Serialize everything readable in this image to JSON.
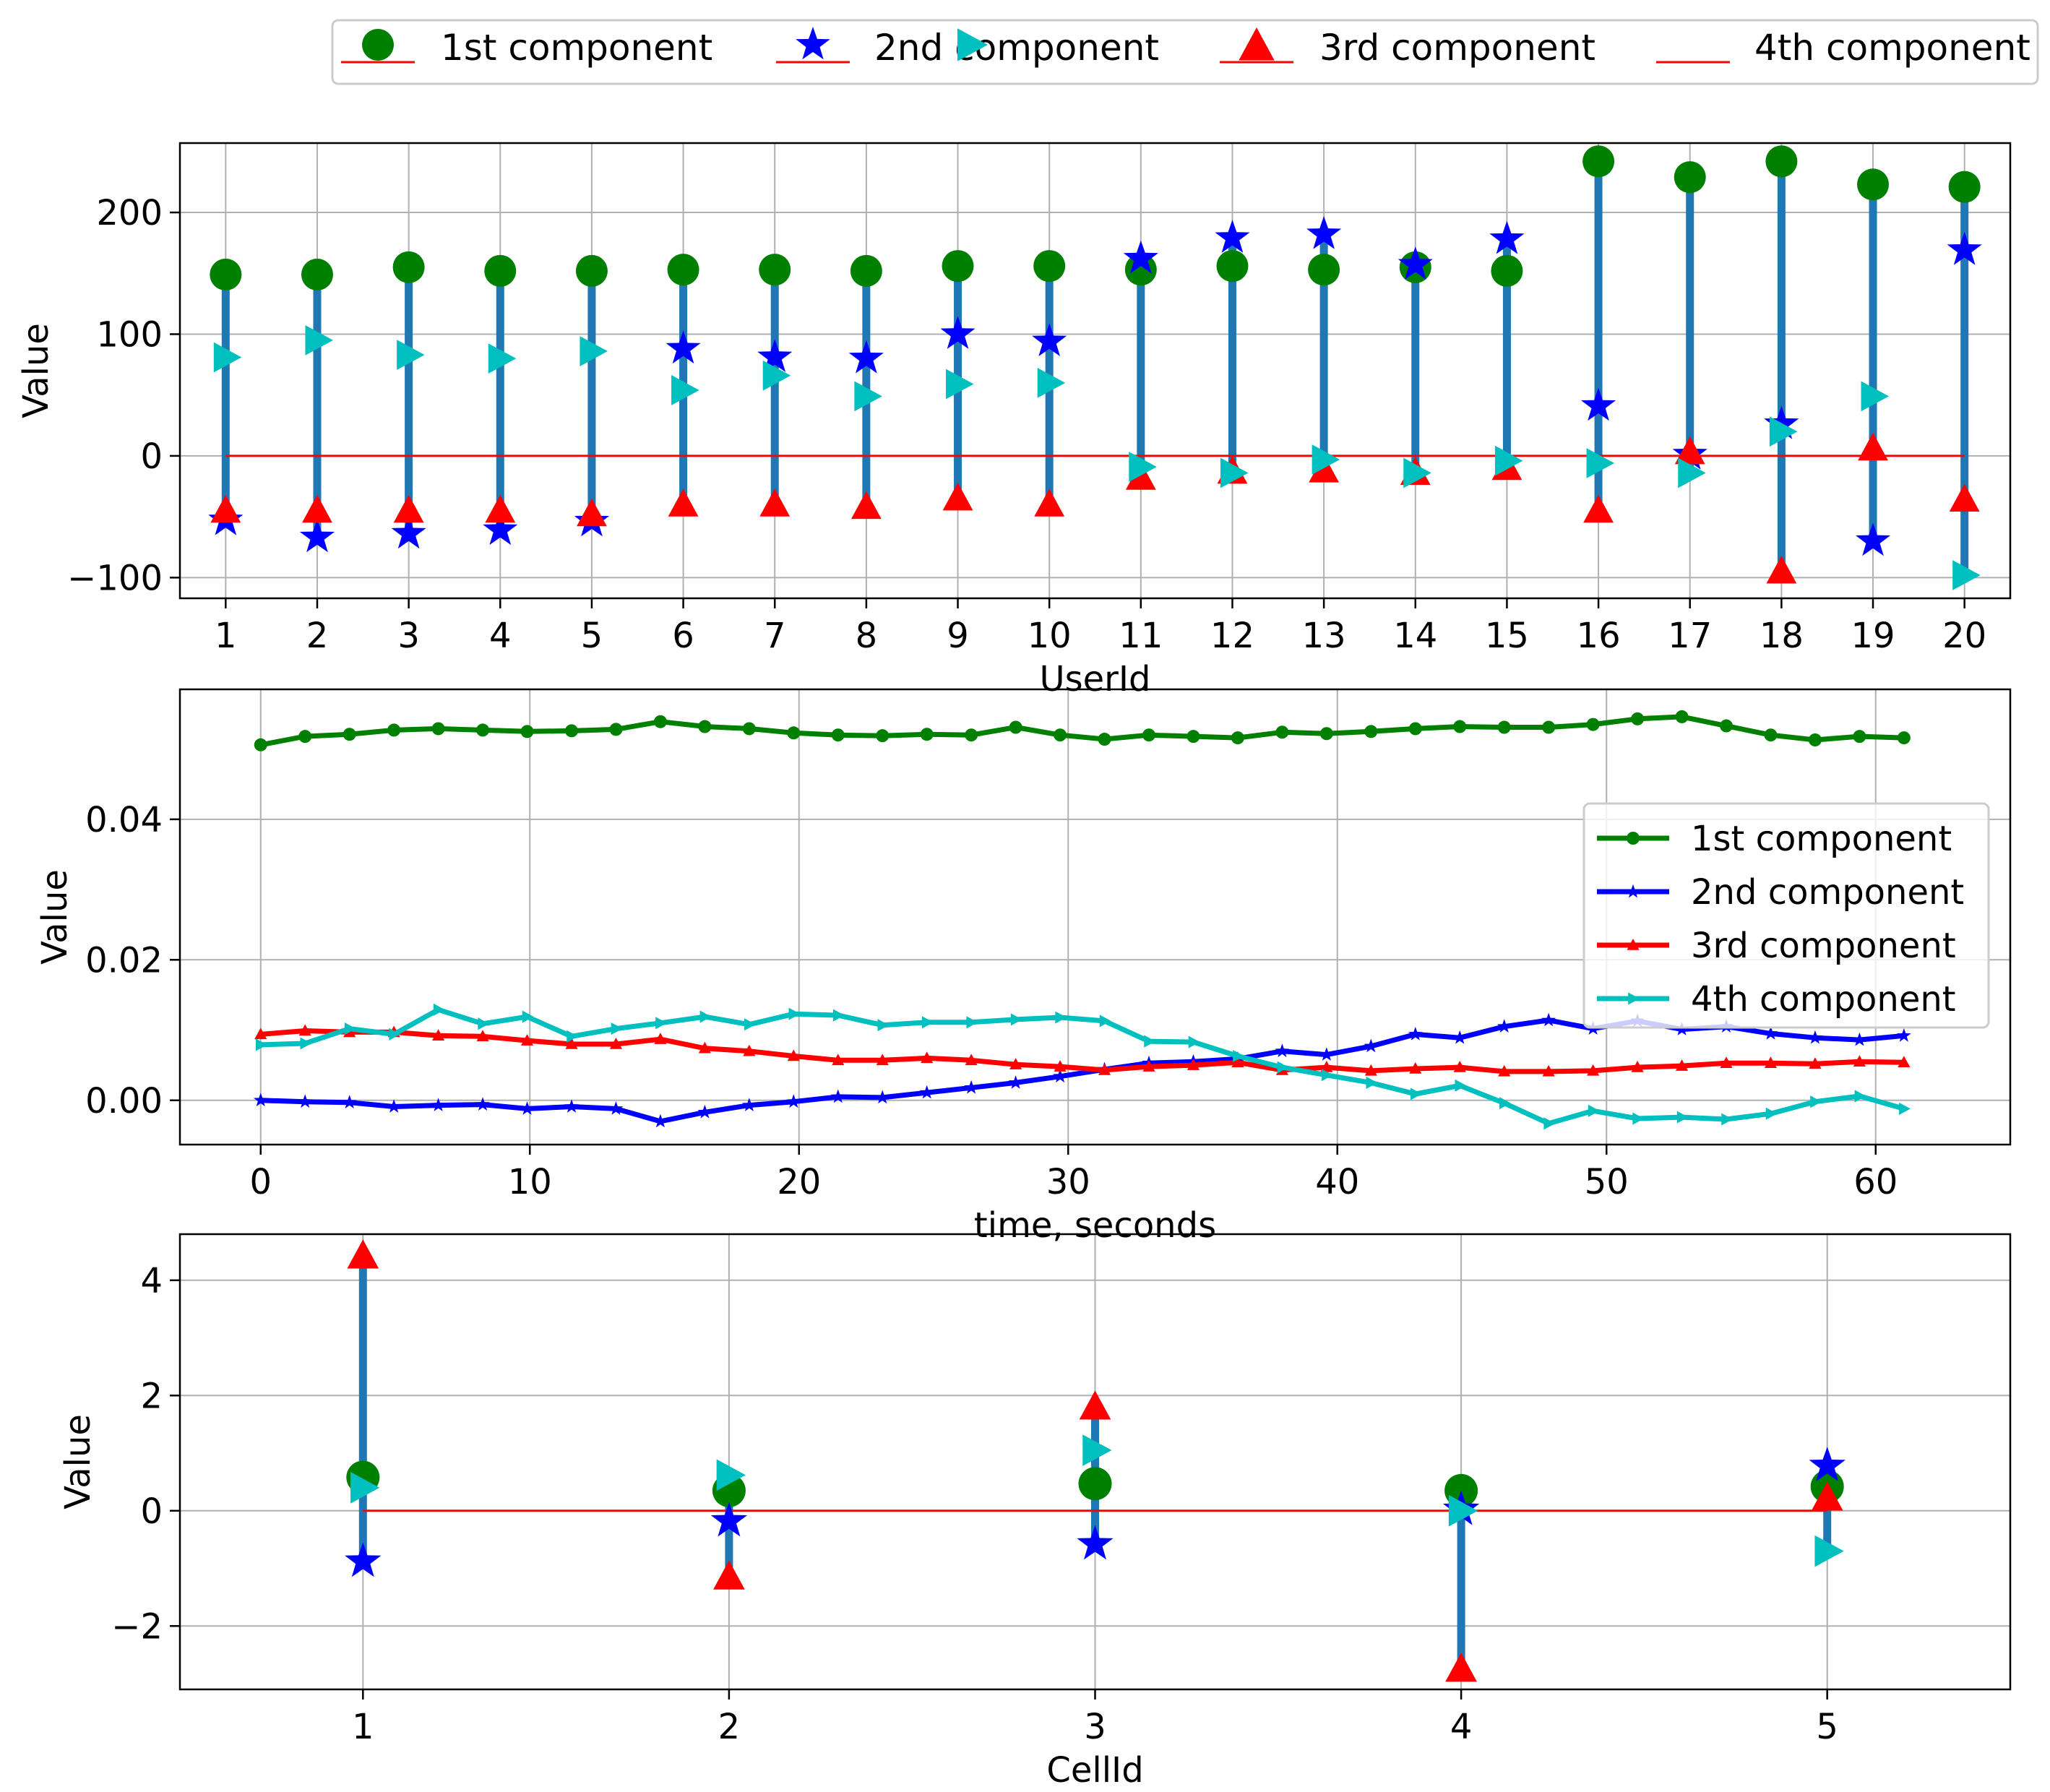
{
  "legend": {
    "entries": [
      "1st component",
      "2nd component",
      "3rd component",
      "4th component"
    ]
  },
  "colors": {
    "c1": "#008000",
    "c2": "#0000ff",
    "c3": "#ff0000",
    "c4": "#00bfbf",
    "stem": "#1f77b4",
    "baseline": "#ff0000",
    "grid": "#b0b0b0"
  },
  "chart_data": [
    {
      "type": "stem",
      "title": "",
      "xlabel": "UserId",
      "ylabel": "Value",
      "xlim": [
        0.5,
        20.5
      ],
      "ylim": [
        -117,
        257
      ],
      "xticks": [
        1,
        2,
        3,
        4,
        5,
        6,
        7,
        8,
        9,
        10,
        11,
        12,
        13,
        14,
        15,
        16,
        17,
        18,
        19,
        20
      ],
      "yticks": [
        -100,
        0,
        100,
        200
      ],
      "ytick_labels": [
        "−100",
        "0",
        "100",
        "200"
      ],
      "grid": true,
      "x": [
        1,
        2,
        3,
        4,
        5,
        6,
        7,
        8,
        9,
        10,
        11,
        12,
        13,
        14,
        15,
        16,
        17,
        18,
        19,
        20
      ],
      "series": [
        {
          "name": "1st component",
          "values": [
            149,
            149,
            155,
            152,
            152,
            153,
            153,
            152,
            156,
            156,
            153,
            156,
            153,
            155,
            152,
            242,
            229,
            242,
            223,
            221
          ]
        },
        {
          "name": "2nd component",
          "values": [
            -53,
            -67,
            -64,
            -61,
            -54,
            88,
            81,
            80,
            100,
            94,
            162,
            179,
            182,
            157,
            178,
            41,
            1,
            26,
            -70,
            169
          ]
        },
        {
          "name": "3rd component",
          "values": [
            -45,
            -45,
            -45,
            -45,
            -48,
            -40,
            -40,
            -42,
            -35,
            -40,
            -18,
            -13,
            -12,
            -14,
            -10,
            -45,
            3,
            -95,
            6,
            -36
          ]
        },
        {
          "name": "4th component",
          "values": [
            81,
            95,
            83,
            80,
            86,
            54,
            66,
            49,
            59,
            60,
            -9,
            -14,
            -3,
            -14,
            -4,
            -6,
            -14,
            20,
            49,
            -98
          ]
        }
      ]
    },
    {
      "type": "line",
      "title": "",
      "xlabel": "time, seconds",
      "ylabel": "Value",
      "xlim": [
        -3,
        65
      ],
      "ylim": [
        -0.0063,
        0.0585
      ],
      "xticks": [
        0,
        10,
        20,
        30,
        40,
        50,
        60
      ],
      "yticks": [
        0,
        0.02,
        0.04
      ],
      "ytick_labels": [
        "0.00",
        "0.02",
        "0.04"
      ],
      "grid": true,
      "legend_position": "center-right",
      "x": [
        0,
        1.65,
        3.3,
        4.95,
        6.6,
        8.25,
        9.9,
        11.55,
        13.2,
        14.85,
        16.5,
        18.15,
        19.8,
        21.45,
        23.1,
        24.75,
        26.4,
        28.05,
        29.7,
        31.35,
        33,
        34.65,
        36.3,
        37.95,
        39.6,
        41.25,
        42.9,
        44.55,
        46.2,
        47.85,
        49.5,
        51.15,
        52.8,
        54.45,
        56.1,
        57.75,
        59.4,
        61.05
      ],
      "series": [
        {
          "name": "1st component",
          "values": [
            0.0506,
            0.0518,
            0.0521,
            0.0527,
            0.0529,
            0.0527,
            0.0525,
            0.0526,
            0.0528,
            0.0539,
            0.0532,
            0.0529,
            0.0523,
            0.052,
            0.0519,
            0.0521,
            0.052,
            0.0531,
            0.052,
            0.0514,
            0.052,
            0.0518,
            0.0516,
            0.0524,
            0.0522,
            0.0525,
            0.0529,
            0.0532,
            0.0531,
            0.0531,
            0.0535,
            0.0543,
            0.0546,
            0.0533,
            0.052,
            0.0513,
            0.0518,
            0.0516
          ]
        },
        {
          "name": "2nd component",
          "values": [
            0.0,
            -0.0002,
            -0.0003,
            -0.0009,
            -0.0007,
            -0.0006,
            -0.0012,
            -0.0009,
            -0.0012,
            -0.003,
            -0.0017,
            -0.0007,
            -0.0002,
            0.0005,
            0.0004,
            0.0011,
            0.0018,
            0.0025,
            0.0034,
            0.0044,
            0.0053,
            0.0055,
            0.0059,
            0.007,
            0.0065,
            0.0077,
            0.0094,
            0.0089,
            0.0105,
            0.0114,
            0.0102,
            0.0113,
            0.0101,
            0.0105,
            0.0095,
            0.0089,
            0.0086,
            0.0092
          ]
        },
        {
          "name": "3rd component",
          "values": [
            0.0094,
            0.0099,
            0.0097,
            0.0097,
            0.0092,
            0.0091,
            0.0085,
            0.008,
            0.008,
            0.0087,
            0.0074,
            0.007,
            0.0063,
            0.0057,
            0.0057,
            0.006,
            0.0057,
            0.0051,
            0.0048,
            0.0043,
            0.0048,
            0.005,
            0.0054,
            0.0043,
            0.0047,
            0.0042,
            0.0045,
            0.0047,
            0.0041,
            0.0041,
            0.0042,
            0.0047,
            0.0049,
            0.0053,
            0.0053,
            0.0052,
            0.0055,
            0.0054
          ]
        },
        {
          "name": "4th component",
          "values": [
            0.0079,
            0.0081,
            0.0102,
            0.0094,
            0.0129,
            0.0109,
            0.0119,
            0.0091,
            0.0102,
            0.011,
            0.0119,
            0.0108,
            0.0123,
            0.0121,
            0.0107,
            0.0111,
            0.0111,
            0.0115,
            0.0118,
            0.0113,
            0.0084,
            0.0083,
            0.0063,
            0.0047,
            0.0036,
            0.0025,
            0.0009,
            0.0021,
            -0.0004,
            -0.0033,
            -0.0015,
            -0.0026,
            -0.0024,
            -0.0027,
            -0.0019,
            -0.0002,
            0.0006,
            -0.0012
          ]
        }
      ]
    },
    {
      "type": "stem",
      "title": "",
      "xlabel": "CellId",
      "ylabel": "Value",
      "xlim": [
        0.5,
        5.5
      ],
      "ylim": [
        -3.1,
        4.8
      ],
      "xticks": [
        1,
        2,
        3,
        4,
        5
      ],
      "yticks": [
        -2,
        0,
        2,
        4
      ],
      "ytick_labels": [
        "−2",
        "0",
        "2",
        "4"
      ],
      "grid": true,
      "x": [
        1,
        2,
        3,
        4,
        5
      ],
      "series": [
        {
          "name": "1st component",
          "values": [
            0.58,
            0.35,
            0.47,
            0.35,
            0.42
          ]
        },
        {
          "name": "2nd component",
          "values": [
            -0.88,
            -0.18,
            -0.58,
            0.02,
            0.78
          ]
        },
        {
          "name": "3rd component",
          "values": [
            4.42,
            -1.15,
            1.8,
            -2.75,
            0.22
          ]
        },
        {
          "name": "4th component",
          "values": [
            0.4,
            0.62,
            1.05,
            0.0,
            -0.7
          ]
        }
      ]
    }
  ]
}
